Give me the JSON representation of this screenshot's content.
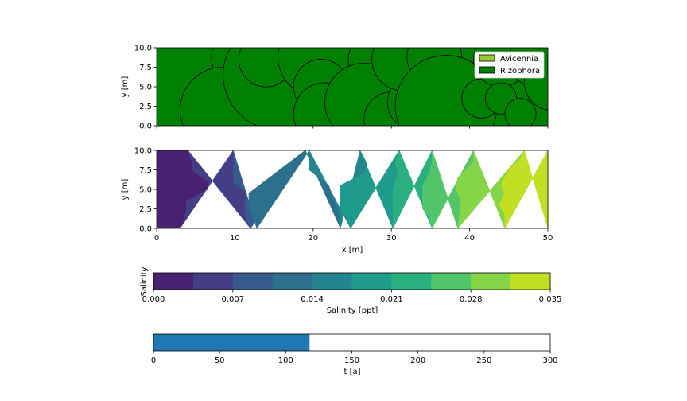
{
  "chart_data": [
    {
      "type": "scatter",
      "subtype": "tree-crowns",
      "ylabel": "y [m]",
      "xlim": [
        0,
        50
      ],
      "ylim": [
        0,
        10
      ],
      "yticks": [
        "0.0",
        "2.5",
        "5.0",
        "7.5",
        "10.0"
      ],
      "legend": {
        "placement": "top-right",
        "entries": [
          {
            "name": "Avicennia",
            "color": "#9acd32"
          },
          {
            "name": "Rizophora",
            "color": "#008000"
          }
        ]
      },
      "crown_color": "#008000",
      "trees": [
        {
          "x": 3.0,
          "y": 3.5,
          "r": 8.5
        },
        {
          "x": 10.5,
          "y": 8.8,
          "r": 3.5
        },
        {
          "x": 8.5,
          "y": 2.0,
          "r": 5.5
        },
        {
          "x": 13.5,
          "y": 1.5,
          "r": 1.5
        },
        {
          "x": 15.5,
          "y": 6.5,
          "r": 7.0
        },
        {
          "x": 14.0,
          "y": 8.5,
          "r": 3.5
        },
        {
          "x": 20.5,
          "y": 8.8,
          "r": 5.0
        },
        {
          "x": 21.0,
          "y": 5.0,
          "r": 3.5
        },
        {
          "x": 21.5,
          "y": 1.5,
          "r": 4.0
        },
        {
          "x": 28.0,
          "y": 8.5,
          "r": 3.5
        },
        {
          "x": 26.5,
          "y": 3.0,
          "r": 5.0
        },
        {
          "x": 30.0,
          "y": 0.8,
          "r": 3.5
        },
        {
          "x": 33.0,
          "y": 3.0,
          "r": 3.5
        },
        {
          "x": 31.5,
          "y": 8.5,
          "r": 4.0
        },
        {
          "x": 34.0,
          "y": 1.5,
          "r": 2.5
        },
        {
          "x": 35.5,
          "y": 8.8,
          "r": 3.5
        },
        {
          "x": 37.0,
          "y": 2.5,
          "r": 6.5
        },
        {
          "x": 41.5,
          "y": 3.5,
          "r": 2.5
        },
        {
          "x": 44.0,
          "y": 8.5,
          "r": 3.5
        },
        {
          "x": 44.0,
          "y": 3.5,
          "r": 2.0
        },
        {
          "x": 46.5,
          "y": 1.5,
          "r": 2.0
        },
        {
          "x": 48.5,
          "y": 8.5,
          "r": 3.5
        },
        {
          "x": 50.5,
          "y": 5.5,
          "r": 3.5
        }
      ]
    },
    {
      "type": "heatmap",
      "subtype": "filled-contour",
      "xlabel": "x [m]",
      "ylabel": "y [m]",
      "xlim": [
        0,
        50
      ],
      "ylim": [
        0,
        10
      ],
      "xticks": [
        "0",
        "10",
        "20",
        "30",
        "40",
        "50"
      ],
      "yticks": [
        "0.0",
        "2.5",
        "5.0",
        "7.5",
        "10.0"
      ],
      "levels": [
        0.0,
        0.0035,
        0.007,
        0.0105,
        0.014,
        0.0175,
        0.021,
        0.0245,
        0.028,
        0.0315,
        0.035
      ],
      "band_colors": [
        "#482173",
        "#433e85",
        "#38598c",
        "#2d708e",
        "#25858e",
        "#1e9b8a",
        "#2ab07f",
        "#52c569",
        "#86d549",
        "#c2df23"
      ],
      "boundaries": [
        [
          [
            3,
            0
          ],
          [
            3.5,
            1.2
          ],
          [
            3.8,
            2.5
          ],
          [
            3.8,
            3.5
          ],
          [
            6.5,
            5.0
          ],
          [
            6.5,
            6.0
          ],
          [
            4.5,
            7.5
          ],
          [
            4.5,
            8.5
          ],
          [
            4.0,
            10
          ]
        ],
        [
          [
            12.0,
            0
          ],
          [
            11.5,
            1.0
          ],
          [
            11.2,
            2.5
          ],
          [
            11.5,
            4.5
          ],
          [
            9.8,
            6.0
          ],
          [
            9.8,
            10
          ]
        ],
        [
          [
            12.8,
            0
          ],
          [
            12.5,
            1.0
          ],
          [
            11.8,
            2.5
          ],
          [
            11.8,
            4.5
          ],
          [
            19.0,
            10
          ]
        ],
        [
          [
            23.5,
            0
          ],
          [
            23.2,
            2.5
          ],
          [
            22.5,
            4.0
          ],
          [
            22.0,
            5.5
          ],
          [
            19.5,
            7.5
          ],
          [
            19.5,
            10
          ]
        ],
        [
          [
            24.8,
            0
          ],
          [
            24.2,
            1.5
          ],
          [
            23.5,
            2.5
          ],
          [
            23.5,
            5.5
          ],
          [
            26.0,
            6.8
          ],
          [
            26.8,
            7.5
          ],
          [
            26.8,
            8.5
          ],
          [
            26.0,
            10
          ]
        ],
        [
          [
            30.2,
            0
          ],
          [
            30.2,
            5.0
          ],
          [
            30.8,
            7.0
          ],
          [
            30.5,
            8.5
          ],
          [
            31.0,
            10
          ]
        ],
        [
          [
            35.2,
            0
          ],
          [
            34.8,
            1.5
          ],
          [
            34.0,
            2.5
          ],
          [
            34.0,
            5.5
          ],
          [
            34.8,
            7.0
          ],
          [
            35.2,
            8.5
          ],
          [
            35.2,
            10
          ]
        ],
        [
          [
            38.5,
            0
          ],
          [
            38.8,
            2.5
          ],
          [
            38.8,
            3.8
          ],
          [
            38.2,
            5.0
          ],
          [
            38.5,
            6.5
          ],
          [
            40.5,
            8.5
          ],
          [
            40.5,
            10
          ]
        ],
        [
          [
            44.5,
            0
          ],
          [
            44.5,
            1.8
          ],
          [
            43.8,
            3.0
          ],
          [
            44.5,
            4.5
          ],
          [
            44.0,
            5.5
          ],
          [
            45.0,
            7.5
          ],
          [
            46.5,
            9.0
          ],
          [
            47.0,
            10
          ]
        ],
        [
          [
            50.0,
            0
          ],
          [
            50.0,
            10
          ]
        ]
      ]
    },
    {
      "type": "bar",
      "subtype": "colorbar",
      "label": "Salinity [ppt]",
      "ylabel": "Salinity",
      "xlim": [
        0,
        0.035
      ],
      "xticks": [
        "0.000",
        "0.007",
        "0.014",
        "0.021",
        "0.028",
        "0.035"
      ],
      "segments": 10
    },
    {
      "type": "bar",
      "subtype": "progress",
      "xlabel": "t [a]",
      "xlim": [
        0,
        300
      ],
      "xticks": [
        "0",
        "50",
        "100",
        "150",
        "200",
        "250",
        "300"
      ],
      "value": 118,
      "color": "#1f77b4"
    }
  ]
}
